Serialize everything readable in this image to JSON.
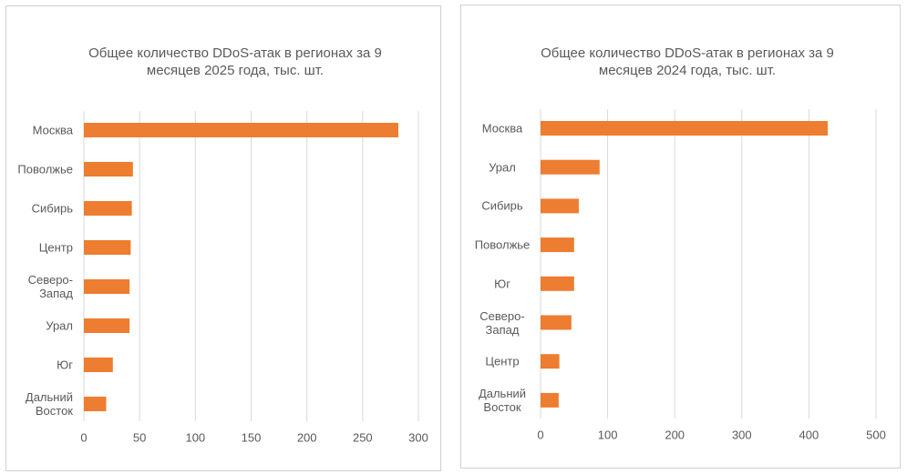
{
  "chart_data": [
    {
      "type": "bar",
      "orientation": "horizontal",
      "title": "Общее количество DDoS-атак в регионах за 9 месяцев 2025 года, тыс. шт.",
      "categories": [
        "Москва",
        "Поволжье",
        "Сибирь",
        "Центр",
        "Северо-Запад",
        "Урал",
        "Юг",
        "Дальний Восток"
      ],
      "values": [
        282,
        44,
        43,
        42,
        41,
        41,
        26,
        20
      ],
      "color": "#ed7d31",
      "xlim": [
        0,
        300
      ],
      "xticks": [
        0,
        50,
        100,
        150,
        200,
        250,
        300
      ],
      "grid": true
    },
    {
      "type": "bar",
      "orientation": "horizontal",
      "title": "Общее количество DDoS-атак в регионах за 9 месяцев 2024 года, тыс. шт.",
      "categories": [
        "Москва",
        "Урал",
        "Сибирь",
        "Поволжье",
        "Юг",
        "Северо-Запад",
        "Центр",
        "Дальний Восток"
      ],
      "values": [
        428,
        88,
        57,
        50,
        50,
        46,
        28,
        27
      ],
      "color": "#ed7d31",
      "xlim": [
        0,
        500
      ],
      "xticks": [
        0,
        100,
        200,
        300,
        400,
        500
      ],
      "grid": true
    }
  ]
}
